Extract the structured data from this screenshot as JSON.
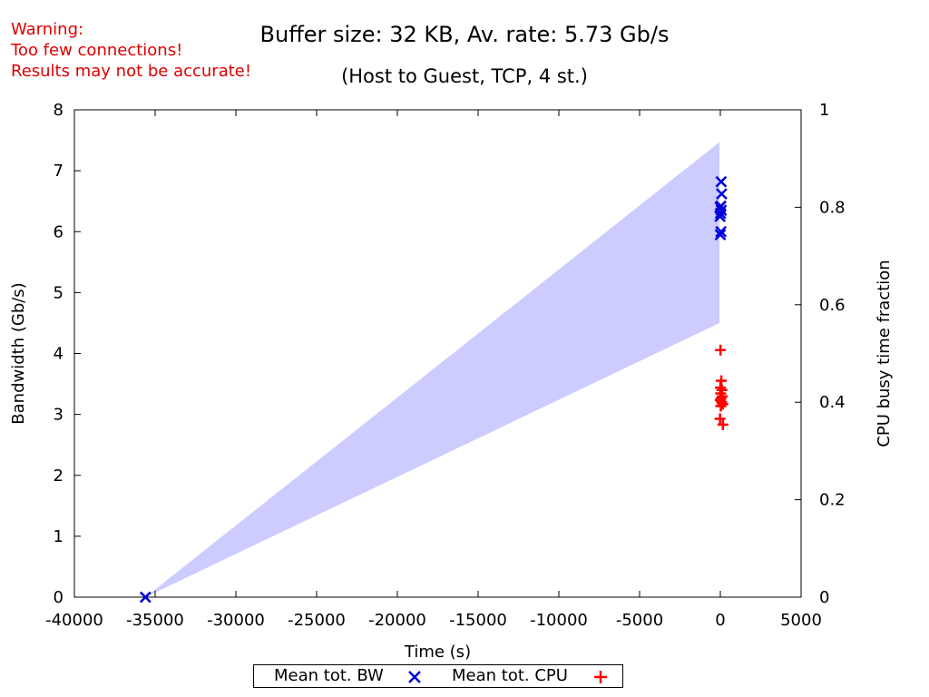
{
  "warning": {
    "lines": [
      "Warning:",
      "Too few connections!",
      "Results may not be accurate!"
    ],
    "color": "#e00000"
  },
  "title": "Buffer size: 32 KB, Av. rate: 5.73 Gb/s",
  "subtitle": "(Host to Guest, TCP, 4 st.)",
  "chart_data": {
    "type": "scatter",
    "xlabel": "Time (s)",
    "ylabel": "Bandwidth (Gb/s)",
    "y2label": "CPU busy time fraction",
    "xlim": [
      -40000,
      5000
    ],
    "ylim": [
      0,
      8
    ],
    "y2lim": [
      0,
      1
    ],
    "xticks": [
      -40000,
      -35000,
      -30000,
      -25000,
      -20000,
      -15000,
      -10000,
      -5000,
      0,
      5000
    ],
    "yticks": [
      0,
      1,
      2,
      3,
      4,
      5,
      6,
      7,
      8
    ],
    "y2ticks": [
      0,
      0.2,
      0.4,
      0.6,
      0.8,
      1
    ],
    "y2ticklabels": [
      "0",
      "0.2",
      "0.4",
      "0.6",
      "0.8",
      "1"
    ],
    "grid": false,
    "legend_position": "bottom-center",
    "band": {
      "color": "#ccccff",
      "points": [
        [
          -35600,
          0
        ],
        [
          -50,
          7.47
        ],
        [
          -50,
          4.5
        ]
      ]
    },
    "series": [
      {
        "name": "Mean tot. BW",
        "marker": "x",
        "axis": "y",
        "color": "#0000dd",
        "points": [
          [
            -35600,
            0
          ],
          [
            0,
            5.95
          ],
          [
            40,
            6.0
          ],
          [
            -20,
            6.25
          ],
          [
            10,
            6.3
          ],
          [
            60,
            6.35
          ],
          [
            -10,
            6.4
          ],
          [
            30,
            6.42
          ],
          [
            80,
            6.62
          ],
          [
            50,
            6.82
          ]
        ]
      },
      {
        "name": "Mean tot. CPU",
        "marker": "+",
        "axis": "y2",
        "color": "#ff0000",
        "points": [
          [
            10,
            0.507
          ],
          [
            60,
            0.444
          ],
          [
            0,
            0.43
          ],
          [
            100,
            0.425
          ],
          [
            20,
            0.418
          ],
          [
            120,
            0.412
          ],
          [
            40,
            0.408
          ],
          [
            -10,
            0.404
          ],
          [
            80,
            0.4
          ],
          [
            150,
            0.396
          ],
          [
            30,
            0.392
          ],
          [
            -20,
            0.366
          ],
          [
            160,
            0.354
          ]
        ]
      }
    ]
  }
}
